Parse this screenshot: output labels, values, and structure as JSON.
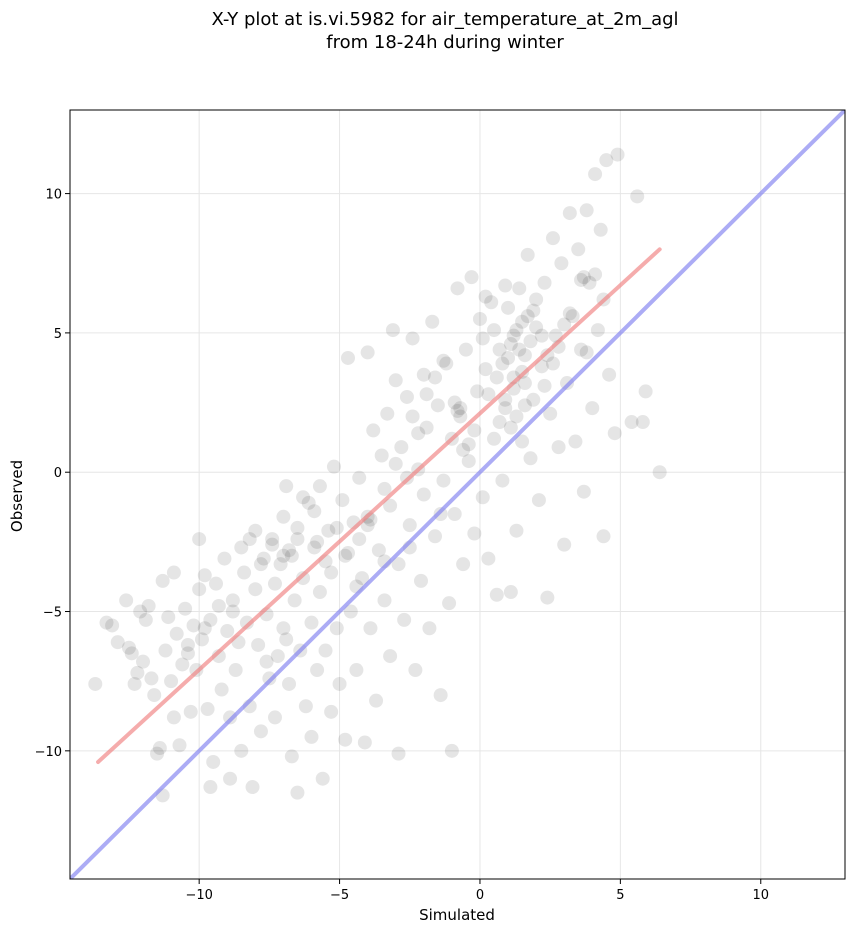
{
  "chart_data": {
    "type": "scatter",
    "title_line1": "X-Y plot at is.vi.5982 for air_temperature_at_2m_agl",
    "title_line2": "from 18-24h during winter",
    "xlabel": "Simulated",
    "ylabel": "Observed",
    "xlim": [
      -14.6,
      13.0
    ],
    "ylim": [
      -14.6,
      13.0
    ],
    "x_ticks": [
      -10,
      -5,
      0,
      5,
      10
    ],
    "y_ticks": [
      -10,
      -5,
      0,
      5,
      10
    ],
    "x_tick_labels": [
      "−10",
      "−5",
      "0",
      "5",
      "10"
    ],
    "y_tick_labels": [
      "−10",
      "−5",
      "0",
      "5",
      "10"
    ],
    "grid": true,
    "point_color": "#000000",
    "point_alpha": 0.1,
    "series": [
      {
        "values_description": "observation pairs",
        "points": [
          [
            -13.7,
            -7.6
          ],
          [
            -13.3,
            -5.4
          ],
          [
            -13.1,
            -5.5
          ],
          [
            -12.9,
            -6.1
          ],
          [
            -12.6,
            -4.6
          ],
          [
            -12.5,
            -6.3
          ],
          [
            -12.4,
            -6.5
          ],
          [
            -12.3,
            -7.6
          ],
          [
            -12.2,
            -7.2
          ],
          [
            -12.1,
            -5.0
          ],
          [
            -12.0,
            -6.8
          ],
          [
            -11.9,
            -5.3
          ],
          [
            -11.8,
            -4.8
          ],
          [
            -11.7,
            -7.4
          ],
          [
            -11.6,
            -8.0
          ],
          [
            -11.5,
            -10.1
          ],
          [
            -11.4,
            -9.9
          ],
          [
            -11.3,
            -11.6
          ],
          [
            -11.3,
            -3.9
          ],
          [
            -11.2,
            -6.4
          ],
          [
            -11.1,
            -5.2
          ],
          [
            -11.0,
            -7.5
          ],
          [
            -10.9,
            -3.6
          ],
          [
            -10.9,
            -8.8
          ],
          [
            -10.8,
            -5.8
          ],
          [
            -10.7,
            -9.8
          ],
          [
            -10.6,
            -6.9
          ],
          [
            -10.5,
            -4.9
          ],
          [
            -10.4,
            -6.2
          ],
          [
            -10.3,
            -8.6
          ],
          [
            -10.2,
            -5.5
          ],
          [
            -10.1,
            -7.1
          ],
          [
            -10.0,
            -2.4
          ],
          [
            -10.0,
            -4.2
          ],
          [
            -9.9,
            -6.0
          ],
          [
            -9.8,
            -3.7
          ],
          [
            -9.7,
            -8.5
          ],
          [
            -9.6,
            -5.3
          ],
          [
            -9.6,
            -11.3
          ],
          [
            -9.5,
            -10.4
          ],
          [
            -9.4,
            -4.0
          ],
          [
            -9.3,
            -6.6
          ],
          [
            -9.2,
            -7.8
          ],
          [
            -9.1,
            -3.1
          ],
          [
            -9.0,
            -5.7
          ],
          [
            -8.9,
            -8.8
          ],
          [
            -8.9,
            -11.0
          ],
          [
            -8.8,
            -4.6
          ],
          [
            -8.7,
            -7.1
          ],
          [
            -8.6,
            -6.1
          ],
          [
            -8.5,
            -10.0
          ],
          [
            -8.5,
            -2.7
          ],
          [
            -8.4,
            -3.6
          ],
          [
            -8.3,
            -5.4
          ],
          [
            -8.2,
            -8.4
          ],
          [
            -8.1,
            -11.3
          ],
          [
            -8.0,
            -2.1
          ],
          [
            -8.0,
            -4.2
          ],
          [
            -7.9,
            -6.2
          ],
          [
            -7.8,
            -9.3
          ],
          [
            -7.7,
            -3.1
          ],
          [
            -7.6,
            -5.1
          ],
          [
            -7.5,
            -7.4
          ],
          [
            -7.4,
            -2.6
          ],
          [
            -7.3,
            -4.0
          ],
          [
            -7.3,
            -8.8
          ],
          [
            -7.2,
            -6.6
          ],
          [
            -7.1,
            -3.3
          ],
          [
            -7.0,
            -1.6
          ],
          [
            -7.0,
            -5.6
          ],
          [
            -6.9,
            -0.5
          ],
          [
            -6.8,
            -7.6
          ],
          [
            -6.7,
            -3.0
          ],
          [
            -6.7,
            -10.2
          ],
          [
            -6.6,
            -4.6
          ],
          [
            -6.5,
            -11.5
          ],
          [
            -6.5,
            -2.4
          ],
          [
            -6.4,
            -6.4
          ],
          [
            -6.3,
            -3.8
          ],
          [
            -6.2,
            -8.4
          ],
          [
            -6.1,
            -1.1
          ],
          [
            -6.0,
            -5.4
          ],
          [
            -6.0,
            -9.5
          ],
          [
            -5.9,
            -2.7
          ],
          [
            -5.8,
            -7.1
          ],
          [
            -5.7,
            -0.5
          ],
          [
            -5.7,
            -4.3
          ],
          [
            -5.6,
            -11.0
          ],
          [
            -5.5,
            -6.4
          ],
          [
            -5.4,
            -2.1
          ],
          [
            -5.3,
            -8.6
          ],
          [
            -5.3,
            -3.6
          ],
          [
            -5.2,
            0.2
          ],
          [
            -5.1,
            -5.6
          ],
          [
            -5.0,
            -7.6
          ],
          [
            -4.9,
            -1.0
          ],
          [
            -4.8,
            -9.6
          ],
          [
            -4.8,
            -3.0
          ],
          [
            -4.7,
            4.1
          ],
          [
            -4.6,
            -5.0
          ],
          [
            -4.5,
            -1.8
          ],
          [
            -4.4,
            -7.1
          ],
          [
            -4.3,
            -0.2
          ],
          [
            -4.2,
            -3.8
          ],
          [
            -4.1,
            -9.7
          ],
          [
            -4.0,
            4.3
          ],
          [
            -4.0,
            -1.6
          ],
          [
            -3.9,
            -5.6
          ],
          [
            -3.8,
            1.5
          ],
          [
            -3.7,
            -8.2
          ],
          [
            -3.6,
            -2.8
          ],
          [
            -3.5,
            0.6
          ],
          [
            -3.4,
            -4.6
          ],
          [
            -3.3,
            2.1
          ],
          [
            -3.2,
            -6.6
          ],
          [
            -3.2,
            -1.2
          ],
          [
            -3.1,
            5.1
          ],
          [
            -3.0,
            3.3
          ],
          [
            -2.9,
            -10.1
          ],
          [
            -2.9,
            -3.3
          ],
          [
            -2.8,
            0.9
          ],
          [
            -2.7,
            -5.3
          ],
          [
            -2.6,
            2.7
          ],
          [
            -2.5,
            -1.9
          ],
          [
            -2.4,
            4.8
          ],
          [
            -2.3,
            -7.1
          ],
          [
            -2.2,
            0.1
          ],
          [
            -2.1,
            -3.9
          ],
          [
            -2.0,
            3.5
          ],
          [
            -2.0,
            -0.8
          ],
          [
            -1.9,
            1.6
          ],
          [
            -1.8,
            -5.6
          ],
          [
            -1.7,
            5.4
          ],
          [
            -1.6,
            -2.3
          ],
          [
            -1.5,
            2.4
          ],
          [
            -1.4,
            -8.0
          ],
          [
            -1.3,
            -0.3
          ],
          [
            -1.2,
            3.9
          ],
          [
            -1.1,
            -4.7
          ],
          [
            -1.0,
            1.2
          ],
          [
            -1.0,
            -10.0
          ],
          [
            -0.9,
            -1.5
          ],
          [
            -0.8,
            6.6
          ],
          [
            -0.7,
            2.0
          ],
          [
            -0.6,
            -3.3
          ],
          [
            -0.5,
            4.4
          ],
          [
            -0.4,
            0.4
          ],
          [
            -0.3,
            7.0
          ],
          [
            -0.2,
            -2.2
          ],
          [
            -0.1,
            2.9
          ],
          [
            0.0,
            5.5
          ],
          [
            0.1,
            -0.9
          ],
          [
            0.2,
            3.7
          ],
          [
            0.3,
            -3.1
          ],
          [
            0.4,
            6.1
          ],
          [
            0.5,
            1.2
          ],
          [
            0.6,
            -4.4
          ],
          [
            0.7,
            4.4
          ],
          [
            0.8,
            -0.3
          ],
          [
            0.9,
            2.3
          ],
          [
            1.0,
            5.9
          ],
          [
            1.1,
            -4.3
          ],
          [
            1.2,
            3.0
          ],
          [
            1.3,
            -2.1
          ],
          [
            1.4,
            6.6
          ],
          [
            1.5,
            1.1
          ],
          [
            1.6,
            4.2
          ],
          [
            1.7,
            7.8
          ],
          [
            1.8,
            0.5
          ],
          [
            1.9,
            2.6
          ],
          [
            2.0,
            5.2
          ],
          [
            2.1,
            -1.0
          ],
          [
            2.2,
            3.8
          ],
          [
            2.3,
            6.8
          ],
          [
            2.4,
            -4.5
          ],
          [
            2.5,
            2.1
          ],
          [
            2.6,
            8.4
          ],
          [
            2.7,
            4.9
          ],
          [
            2.8,
            0.9
          ],
          [
            2.9,
            7.5
          ],
          [
            3.0,
            -2.6
          ],
          [
            3.1,
            3.2
          ],
          [
            3.2,
            9.3
          ],
          [
            3.3,
            5.6
          ],
          [
            3.4,
            1.1
          ],
          [
            3.5,
            8.0
          ],
          [
            3.6,
            4.4
          ],
          [
            3.7,
            -0.7
          ],
          [
            3.8,
            9.4
          ],
          [
            3.9,
            6.8
          ],
          [
            4.0,
            2.3
          ],
          [
            4.1,
            10.7
          ],
          [
            4.2,
            5.1
          ],
          [
            4.3,
            8.7
          ],
          [
            4.4,
            -2.3
          ],
          [
            4.5,
            11.2
          ],
          [
            4.6,
            3.5
          ],
          [
            4.8,
            1.4
          ],
          [
            4.9,
            11.4
          ],
          [
            5.4,
            1.8
          ],
          [
            5.6,
            9.9
          ],
          [
            5.8,
            1.8
          ],
          [
            5.9,
            2.9
          ],
          [
            6.4,
            0.0
          ],
          [
            0.3,
            2.8
          ],
          [
            0.6,
            3.4
          ],
          [
            0.8,
            3.9
          ],
          [
            1.0,
            4.1
          ],
          [
            1.1,
            4.6
          ],
          [
            1.2,
            4.9
          ],
          [
            1.3,
            5.1
          ],
          [
            1.4,
            4.4
          ],
          [
            1.5,
            3.6
          ],
          [
            1.6,
            3.2
          ],
          [
            1.2,
            3.4
          ],
          [
            0.9,
            2.6
          ],
          [
            1.7,
            5.6
          ],
          [
            1.9,
            5.8
          ],
          [
            2.0,
            6.2
          ],
          [
            1.8,
            4.7
          ],
          [
            1.5,
            5.4
          ],
          [
            1.3,
            2.0
          ],
          [
            1.1,
            1.6
          ],
          [
            0.7,
            1.8
          ],
          [
            -0.8,
            2.2
          ],
          [
            -0.9,
            2.5
          ],
          [
            -0.7,
            2.3
          ],
          [
            -3.9,
            -1.7
          ],
          [
            -4.0,
            -1.9
          ],
          [
            -6.8,
            -2.8
          ],
          [
            -7.0,
            -3.0
          ],
          [
            -7.4,
            -2.4
          ],
          [
            -6.5,
            -2.0
          ],
          [
            -5.8,
            -2.5
          ],
          [
            -5.5,
            -3.2
          ],
          [
            -8.2,
            -2.4
          ],
          [
            -7.8,
            -3.3
          ],
          [
            -2.4,
            2.0
          ],
          [
            -2.2,
            1.4
          ],
          [
            -1.9,
            2.8
          ],
          [
            -1.6,
            3.4
          ],
          [
            -1.3,
            4.0
          ],
          [
            -0.4,
            1.0
          ],
          [
            -0.2,
            1.5
          ],
          [
            0.1,
            4.8
          ],
          [
            0.2,
            6.3
          ],
          [
            0.5,
            5.1
          ],
          [
            0.9,
            6.7
          ],
          [
            3.6,
            6.9
          ],
          [
            3.7,
            7.0
          ],
          [
            2.4,
            4.2
          ],
          [
            2.6,
            3.9
          ],
          [
            2.8,
            4.5
          ],
          [
            3.0,
            5.3
          ],
          [
            3.2,
            5.7
          ],
          [
            2.2,
            4.9
          ],
          [
            -3.0,
            0.3
          ],
          [
            -2.6,
            -0.2
          ],
          [
            -3.4,
            -0.6
          ],
          [
            -4.3,
            -2.4
          ],
          [
            -4.7,
            -2.9
          ],
          [
            -5.1,
            -2.0
          ],
          [
            -5.9,
            -1.4
          ],
          [
            -6.3,
            -0.9
          ],
          [
            -9.3,
            -4.8
          ],
          [
            -8.8,
            -5.0
          ],
          [
            -9.8,
            -5.6
          ],
          [
            -10.4,
            -6.5
          ],
          [
            -7.6,
            -6.8
          ],
          [
            -6.9,
            -6.0
          ],
          [
            -4.4,
            -4.1
          ],
          [
            -3.4,
            -3.2
          ],
          [
            -2.5,
            -2.7
          ],
          [
            -1.4,
            -1.5
          ],
          [
            -0.6,
            0.8
          ],
          [
            1.6,
            2.4
          ],
          [
            2.3,
            3.1
          ],
          [
            3.8,
            4.3
          ],
          [
            4.4,
            6.2
          ],
          [
            4.1,
            7.1
          ]
        ]
      }
    ],
    "regression_line": {
      "color": "#f08080",
      "from": [
        -13.6,
        -10.4
      ],
      "to": [
        6.4,
        8.0
      ]
    },
    "identity_line": {
      "color": "#7f7ff0",
      "from": [
        -14.6,
        -14.6
      ],
      "to": [
        13.0,
        13.0
      ]
    }
  }
}
